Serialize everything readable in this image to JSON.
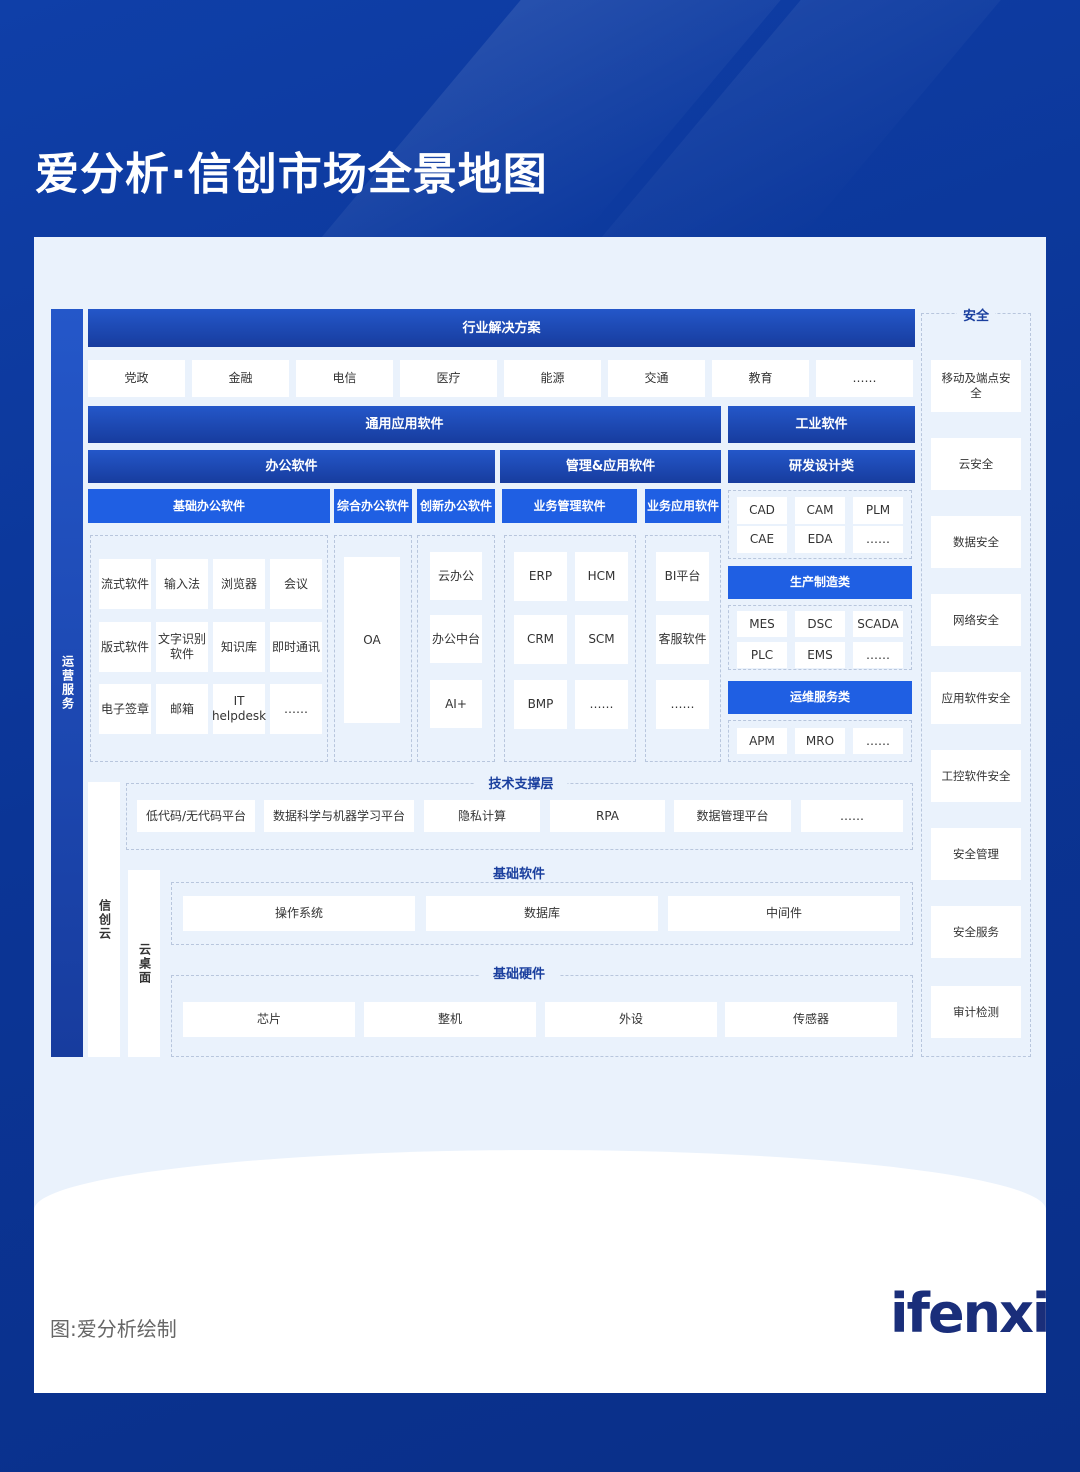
{
  "title": "爱分析·信创市场全景地图",
  "footer": "图:爱分析绘制",
  "logo": "ifenxi",
  "colors": {
    "background": "#0b3596",
    "header_dark": "#173c9e",
    "header_bright": "#1f5fe3",
    "panel": "#eaf2fc"
  },
  "ops_service": "运营服务",
  "industry": {
    "header": "行业解决方案",
    "items": [
      "党政",
      "金融",
      "电信",
      "医疗",
      "能源",
      "交通",
      "教育",
      "……"
    ]
  },
  "general_app": "通用应用软件",
  "industrial": "工业软件",
  "office": {
    "header": "办公软件",
    "basic": {
      "header": "基础办公软件",
      "items": [
        "流式软件",
        "输入法",
        "浏览器",
        "会议",
        "版式软件",
        "文字识别软件",
        "知识库",
        "即时通讯",
        "电子签章",
        "邮箱",
        "IT helpdesk",
        "……"
      ]
    },
    "integrated": {
      "header": "综合办公软件",
      "items": [
        "OA"
      ]
    },
    "innovative": {
      "header": "创新办公软件",
      "items": [
        "云办公",
        "办公中台",
        "AI+"
      ]
    }
  },
  "mgmt": {
    "header": "管理&应用软件",
    "business_mgmt": {
      "header": "业务管理软件",
      "items": [
        "ERP",
        "HCM",
        "CRM",
        "SCM",
        "BMP",
        "……"
      ]
    },
    "business_app": {
      "header": "业务应用软件",
      "items": [
        "BI平台",
        "客服软件",
        "……"
      ]
    }
  },
  "rd": {
    "header": "研发设计类",
    "items": [
      "CAD",
      "CAM",
      "PLM",
      "CAE",
      "EDA",
      "……"
    ]
  },
  "production": {
    "header": "生产制造类",
    "items": [
      "MES",
      "DSC",
      "SCADA",
      "PLC",
      "EMS",
      "……"
    ]
  },
  "ops": {
    "header": "运维服务类",
    "items": [
      "APM",
      "MRO",
      "……"
    ]
  },
  "tech": {
    "header": "技术支撑层",
    "items": [
      "低代码/无代码平台",
      "数据科学与机器学习平台",
      "隐私计算",
      "RPA",
      "数据管理平台",
      "……"
    ]
  },
  "xc_cloud": "信创云",
  "cloud_desktop": "云桌面",
  "base_sw": {
    "header": "基础软件",
    "items": [
      "操作系统",
      "数据库",
      "中间件"
    ]
  },
  "base_hw": {
    "header": "基础硬件",
    "items": [
      "芯片",
      "整机",
      "外设",
      "传感器"
    ]
  },
  "security": {
    "header": "安全",
    "items": [
      "移动及端点安全",
      "云安全",
      "数据安全",
      "网络安全",
      "应用软件安全",
      "工控软件安全",
      "安全管理",
      "安全服务",
      "审计检测"
    ]
  }
}
